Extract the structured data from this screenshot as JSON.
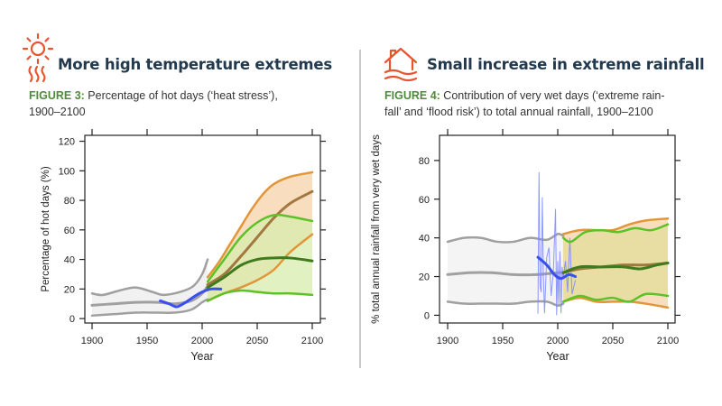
{
  "colors": {
    "heading": "#23394d",
    "figure_label": "#4f8a3c",
    "icon": "#e8542f",
    "historical": "#a0a0a0",
    "observed": "#3a4ff0",
    "high_emission": "#e2963a",
    "low_emission": "#5dc128",
    "dark_green": "#3f7a1c",
    "dark_brown": "#a07840"
  },
  "left": {
    "icon": "sun-heat-icon",
    "heading": "More high temperature extremes",
    "figure_label": "FIGURE 3:",
    "caption_line1": " Percentage of hot days (‘heat stress’),",
    "caption_line2": "1900–2100"
  },
  "right": {
    "icon": "flooded-house-icon",
    "heading": "Small increase in extreme rainfall",
    "figure_label": "FIGURE 4:",
    "caption_line1": " Contribution of very wet days (‘extreme rain-",
    "caption_line2": "fall’ and ‘flood risk’) to total annual rainfall, 1900–2100"
  },
  "chart_data": [
    {
      "type": "line",
      "title": "Percentage of hot days (‘heat stress’), 1900–2100",
      "xlabel": "Year",
      "ylabel": "Percentage of hot days (%)",
      "xlim": [
        1900,
        2100
      ],
      "ylim": [
        -3,
        124
      ],
      "xticks": [
        1900,
        1950,
        2000,
        2050,
        2100
      ],
      "yticks": [
        0,
        20,
        40,
        60,
        80,
        100,
        120
      ],
      "grid": false,
      "series": [
        {
          "name": "historical upper",
          "color": "#a0a0a0",
          "x": [
            1900,
            1910,
            1925,
            1940,
            1955,
            1965,
            1980,
            1992,
            2000,
            2005
          ],
          "y": [
            17,
            16,
            19,
            21,
            18,
            16,
            18,
            22,
            30,
            40
          ]
        },
        {
          "name": "historical median",
          "color": "#a0a0a0",
          "x": [
            1900,
            1920,
            1940,
            1960,
            1975,
            1990,
            2000,
            2005
          ],
          "y": [
            9,
            10,
            11,
            11,
            10,
            12,
            17,
            22
          ]
        },
        {
          "name": "historical lower",
          "color": "#a0a0a0",
          "x": [
            1900,
            1920,
            1940,
            1960,
            1975,
            1990,
            2000,
            2005
          ],
          "y": [
            2,
            3,
            4,
            4,
            4,
            6,
            11,
            13
          ]
        },
        {
          "name": "observed smoothed",
          "color": "#3a4ff0",
          "x": [
            1962,
            1970,
            1977,
            1985,
            1993,
            2000,
            2008,
            2017
          ],
          "y": [
            12,
            10,
            8,
            11,
            15,
            18,
            20,
            20
          ]
        },
        {
          "name": "high emissions upper",
          "color": "#e2963a",
          "x": [
            2005,
            2015,
            2025,
            2035,
            2045,
            2055,
            2065,
            2080,
            2100
          ],
          "y": [
            28,
            38,
            50,
            62,
            74,
            84,
            91,
            96,
            99
          ]
        },
        {
          "name": "high emissions median",
          "color": "#a07840",
          "x": [
            2005,
            2020,
            2035,
            2050,
            2065,
            2080,
            2100
          ],
          "y": [
            23,
            30,
            42,
            55,
            68,
            78,
            86
          ]
        },
        {
          "name": "high emissions lower",
          "color": "#e2963a",
          "x": [
            2005,
            2020,
            2035,
            2050,
            2065,
            2080,
            2100
          ],
          "y": [
            12,
            17,
            21,
            26,
            33,
            45,
            57
          ]
        },
        {
          "name": "low emissions upper",
          "color": "#5dc128",
          "x": [
            2005,
            2020,
            2035,
            2050,
            2065,
            2080,
            2100
          ],
          "y": [
            25,
            40,
            55,
            65,
            70,
            69,
            66
          ]
        },
        {
          "name": "low emissions median",
          "color": "#3f7a1c",
          "x": [
            2005,
            2020,
            2035,
            2050,
            2065,
            2080,
            2100
          ],
          "y": [
            21,
            28,
            36,
            40,
            41,
            41,
            39
          ]
        },
        {
          "name": "low emissions lower",
          "color": "#5dc128",
          "x": [
            2005,
            2020,
            2035,
            2050,
            2065,
            2080,
            2100
          ],
          "y": [
            12,
            17,
            19,
            18,
            17,
            17,
            16
          ]
        }
      ],
      "bands": [
        {
          "name": "historical range",
          "color": "#ececec",
          "upper": 0,
          "lower": 2
        },
        {
          "name": "high emissions range",
          "color": "#f6d2a8",
          "upper": 4,
          "lower": 6
        },
        {
          "name": "low emissions range",
          "color": "#d8ecae",
          "upper": 7,
          "lower": 9
        }
      ]
    },
    {
      "type": "line",
      "title": "Contribution of very wet days (‘extreme rainfall’ and ‘flood risk’) to total annual rainfall, 1900–2100",
      "xlabel": "Year",
      "ylabel": "% total annual rainfall from very wet days",
      "xlim": [
        1900,
        2100
      ],
      "ylim": [
        -4,
        93
      ],
      "xticks": [
        1900,
        1950,
        2000,
        2050,
        2100
      ],
      "yticks": [
        0,
        20,
        40,
        60,
        80
      ],
      "grid": false,
      "series": [
        {
          "name": "historical upper",
          "color": "#a0a0a0",
          "x": [
            1900,
            1915,
            1930,
            1945,
            1960,
            1975,
            1990,
            2000,
            2005
          ],
          "y": [
            38,
            40,
            40,
            38,
            38,
            40,
            39,
            42,
            41
          ]
        },
        {
          "name": "historical median",
          "color": "#a0a0a0",
          "x": [
            1900,
            1920,
            1940,
            1960,
            1980,
            2000,
            2005
          ],
          "y": [
            21,
            22,
            22,
            21,
            21,
            22,
            22
          ]
        },
        {
          "name": "historical lower",
          "color": "#a0a0a0",
          "x": [
            1900,
            1915,
            1930,
            1945,
            1960,
            1975,
            1990,
            2000,
            2005
          ],
          "y": [
            7,
            6,
            6,
            6,
            6,
            7,
            7,
            5,
            6
          ]
        },
        {
          "name": "observed annual",
          "color": "#7a86ff",
          "x": [
            1982,
            1983,
            1984,
            1985,
            1986,
            1987,
            1988,
            1990,
            1992,
            1994,
            1996,
            1998,
            1999,
            2000,
            2001,
            2002,
            2003,
            2004,
            2005,
            2007,
            2009,
            2011,
            2013,
            2016
          ],
          "y": [
            1,
            74,
            15,
            12,
            61,
            20,
            1,
            30,
            35,
            10,
            22,
            55,
            0,
            28,
            5,
            33,
            1,
            25,
            19,
            28,
            12,
            40,
            11,
            18
          ]
        },
        {
          "name": "observed smoothed",
          "color": "#3a4ff0",
          "x": [
            1982,
            1990,
            1997,
            2003,
            2010,
            2016
          ],
          "y": [
            30,
            26,
            21,
            19,
            21,
            20
          ]
        },
        {
          "name": "high emissions upper",
          "color": "#e2963a",
          "x": [
            2005,
            2020,
            2035,
            2050,
            2065,
            2080,
            2100
          ],
          "y": [
            42,
            44,
            44,
            44,
            47,
            49,
            50
          ]
        },
        {
          "name": "high emissions median",
          "color": "#a07840",
          "x": [
            2005,
            2020,
            2040,
            2060,
            2080,
            2100
          ],
          "y": [
            22,
            24,
            25,
            26,
            26,
            27
          ]
        },
        {
          "name": "high emissions lower",
          "color": "#e2963a",
          "x": [
            2005,
            2020,
            2035,
            2050,
            2065,
            2080,
            2100
          ],
          "y": [
            7,
            9,
            7,
            7,
            7,
            6,
            4
          ]
        },
        {
          "name": "low emissions upper",
          "color": "#5dc128",
          "x": [
            2005,
            2012,
            2025,
            2040,
            2055,
            2070,
            2085,
            2100
          ],
          "y": [
            40,
            38,
            43,
            44,
            43,
            45,
            44,
            47
          ]
        },
        {
          "name": "low emissions median",
          "color": "#3f7a1c",
          "x": [
            2005,
            2020,
            2040,
            2060,
            2075,
            2090,
            2100
          ],
          "y": [
            22,
            25,
            25,
            25,
            24,
            26,
            27
          ]
        },
        {
          "name": "low emissions lower",
          "color": "#5dc128",
          "x": [
            2005,
            2020,
            2035,
            2050,
            2065,
            2080,
            2100
          ],
          "y": [
            7,
            10,
            8,
            9,
            7,
            11,
            10
          ]
        }
      ],
      "bands": [
        {
          "name": "historical range",
          "color": "#f0f0f0",
          "upper": 0,
          "lower": 2
        },
        {
          "name": "high emissions range",
          "color": "#f6d2a8",
          "upper": 5,
          "lower": 7
        },
        {
          "name": "low emissions range",
          "color": "#e3dc9a",
          "upper": 8,
          "lower": 10
        }
      ]
    }
  ]
}
